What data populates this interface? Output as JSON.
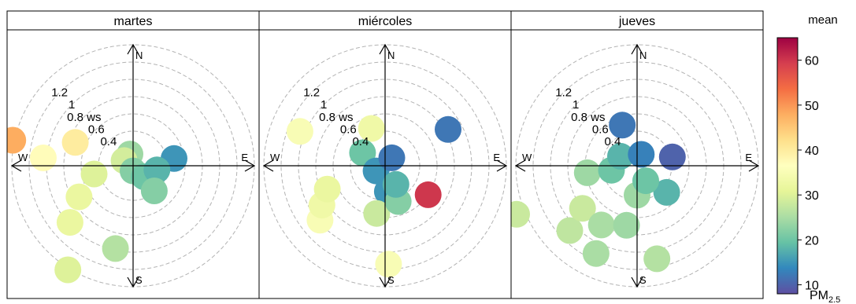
{
  "chart_data": {
    "type": "polar-plot",
    "panels": [
      {
        "label": "martes",
        "blobs": [
          {
            "angle_deg": 282,
            "ws": 1.42,
            "mean": 48
          },
          {
            "angle_deg": 292,
            "ws": 0.72,
            "mean": 40
          },
          {
            "angle_deg": 275,
            "ws": 1.04,
            "mean": 37
          },
          {
            "angle_deg": 258,
            "ws": 0.46,
            "mean": 30
          },
          {
            "angle_deg": 240,
            "ws": 0.72,
            "mean": 32
          },
          {
            "angle_deg": 228,
            "ws": 0.98,
            "mean": 32
          },
          {
            "angle_deg": 212,
            "ws": 1.42,
            "mean": 30
          },
          {
            "angle_deg": 192,
            "ws": 0.98,
            "mean": 26
          },
          {
            "angle_deg": 345,
            "ws": 0.14,
            "mean": 24
          },
          {
            "angle_deg": 300,
            "ws": 0.12,
            "mean": 29
          },
          {
            "angle_deg": 180,
            "ws": 0.06,
            "mean": 22
          },
          {
            "angle_deg": 135,
            "ws": 0.18,
            "mean": 20
          },
          {
            "angle_deg": 80,
            "ws": 0.48,
            "mean": 15
          },
          {
            "angle_deg": 100,
            "ws": 0.28,
            "mean": 18
          },
          {
            "angle_deg": 140,
            "ws": 0.38,
            "mean": 22
          }
        ]
      },
      {
        "label": "miércoles",
        "blobs": [
          {
            "angle_deg": 262,
            "ws": 1.62,
            "mean": 33
          },
          {
            "angle_deg": 292,
            "ws": 1.06,
            "mean": 35
          },
          {
            "angle_deg": 230,
            "ws": 0.98,
            "mean": 35
          },
          {
            "angle_deg": 238,
            "ws": 0.86,
            "mean": 33
          },
          {
            "angle_deg": 248,
            "ws": 0.72,
            "mean": 32
          },
          {
            "angle_deg": 340,
            "ws": 0.46,
            "mean": 33
          },
          {
            "angle_deg": 300,
            "ws": 0.3,
            "mean": 20
          },
          {
            "angle_deg": 240,
            "ws": 0.12,
            "mean": 15
          },
          {
            "angle_deg": 175,
            "ws": 0.3,
            "mean": 15
          },
          {
            "angle_deg": 190,
            "ws": 0.56,
            "mean": 28
          },
          {
            "angle_deg": 160,
            "ws": 0.44,
            "mean": 22
          },
          {
            "angle_deg": 124,
            "ws": 0.6,
            "mean": 60
          },
          {
            "angle_deg": 60,
            "ws": 0.84,
            "mean": 12
          },
          {
            "angle_deg": 178,
            "ws": 1.14,
            "mean": 35
          },
          {
            "angle_deg": 40,
            "ws": 0.12,
            "mean": 12
          },
          {
            "angle_deg": 150,
            "ws": 0.25,
            "mean": 18
          }
        ]
      },
      {
        "label": "jueves",
        "blobs": [
          {
            "angle_deg": 248,
            "ws": 1.5,
            "mean": 28
          },
          {
            "angle_deg": 226,
            "ws": 1.08,
            "mean": 27
          },
          {
            "angle_deg": 205,
            "ws": 1.12,
            "mean": 25
          },
          {
            "angle_deg": 232,
            "ws": 0.8,
            "mean": 28
          },
          {
            "angle_deg": 211,
            "ws": 0.8,
            "mean": 25
          },
          {
            "angle_deg": 190,
            "ws": 0.7,
            "mean": 24
          },
          {
            "angle_deg": 168,
            "ws": 1.1,
            "mean": 26
          },
          {
            "angle_deg": 180,
            "ws": 0.34,
            "mean": 24
          },
          {
            "angle_deg": 262,
            "ws": 0.58,
            "mean": 24
          },
          {
            "angle_deg": 260,
            "ws": 0.3,
            "mean": 20
          },
          {
            "angle_deg": 300,
            "ws": 0.22,
            "mean": 18
          },
          {
            "angle_deg": 340,
            "ws": 0.5,
            "mean": 12
          },
          {
            "angle_deg": 20,
            "ws": 0.14,
            "mean": 13
          },
          {
            "angle_deg": 76,
            "ws": 0.42,
            "mean": 10
          },
          {
            "angle_deg": 132,
            "ws": 0.46,
            "mean": 18
          },
          {
            "angle_deg": 150,
            "ws": 0.2,
            "mean": 20
          }
        ]
      }
    ],
    "ring_values": [
      0.4,
      0.6,
      0.8,
      1,
      1.2
    ],
    "radial_max": 1.4,
    "ring_labels": [
      "0.4",
      "0.6",
      "0.8 ws",
      "1",
      "1.2"
    ],
    "direction_labels": {
      "N": "N",
      "E": "E",
      "S": "S",
      "W": "W"
    },
    "colorbar": {
      "title": "mean",
      "unit_base": "PM",
      "unit_sub": "2.5",
      "min": 8,
      "max": 65,
      "ticks": [
        10,
        20,
        30,
        40,
        50,
        60
      ],
      "colors": [
        "#5E4FA2",
        "#3288BD",
        "#66C2A5",
        "#ABDDA4",
        "#E6F598",
        "#FFFFBF",
        "#FEE08B",
        "#FDAE61",
        "#F46D43",
        "#D53E4F",
        "#9E0142"
      ]
    },
    "grid": true
  }
}
